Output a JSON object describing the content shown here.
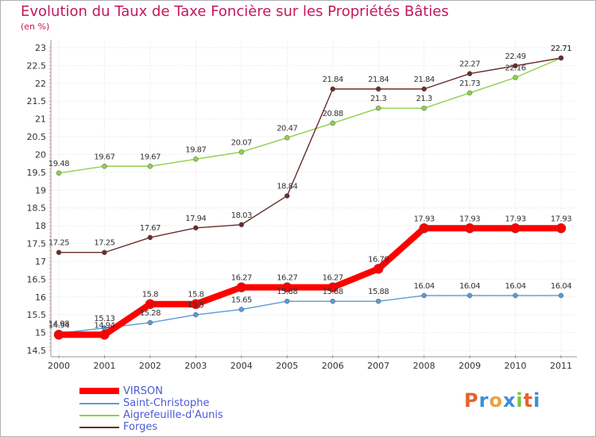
{
  "title": "Evolution du Taux de Taxe Foncière sur les Propriétés Bâties",
  "subtitle": "(en %)",
  "brand": {
    "letters": [
      "P",
      "r",
      "o",
      "x",
      "i",
      "t",
      "i"
    ],
    "colors": [
      "#e8612c",
      "#3a8fd8",
      "#e8a33c",
      "#3a8fd8",
      "#7cc242",
      "#e8612c",
      "#3a8fd8"
    ]
  },
  "chart_data": {
    "type": "line",
    "title": "Evolution du Taux de Taxe Foncière sur les Propriétés Bâties",
    "ylabel": "(en %)",
    "xlabel": "",
    "x": [
      "2000",
      "2001",
      "2002",
      "2003",
      "2004",
      "2005",
      "2006",
      "2007",
      "2008",
      "2009",
      "2010",
      "2011"
    ],
    "ylim": [
      14.5,
      23
    ],
    "yticks": [
      "14.5",
      "15",
      "15.5",
      "16",
      "16.5",
      "17",
      "17.5",
      "18",
      "18.5",
      "19",
      "19.5",
      "20",
      "20.5",
      "21",
      "21.5",
      "22",
      "22.5",
      "23"
    ],
    "series": [
      {
        "name": "Saint-Christophe",
        "color": "#5b9bd5",
        "values": [
          14.98,
          15.13,
          15.28,
          15.5,
          15.65,
          15.88,
          15.88,
          15.88,
          16.04,
          16.04,
          16.04,
          16.04
        ],
        "labels": [
          "14.98",
          "15.13",
          "15.28",
          "15.5",
          "15.65",
          "15.88",
          "15.88",
          "15.88",
          "16.04",
          "16.04",
          "16.04",
          "16.04"
        ]
      },
      {
        "name": "Aigrefeuille-d'Aunis",
        "color": "#8ed14a",
        "values": [
          19.48,
          19.67,
          19.67,
          19.87,
          20.07,
          20.47,
          20.88,
          21.3,
          21.3,
          21.73,
          22.16,
          22.71
        ],
        "labels": [
          "19.48",
          "19.67",
          "19.67",
          "19.87",
          "20.07",
          "20.47",
          "20.88",
          "21.3",
          "21.3",
          "21.73",
          "22.16",
          "22.71"
        ]
      },
      {
        "name": "Forges",
        "color": "#6b2c2c",
        "values": [
          17.25,
          17.25,
          17.67,
          17.94,
          18.03,
          18.84,
          21.84,
          21.84,
          21.84,
          22.27,
          22.49,
          22.71
        ],
        "labels": [
          "17.25",
          "17.25",
          "17.67",
          "17.94",
          "18.03",
          "18.84",
          "21.84",
          "21.84",
          "21.84",
          "22.27",
          "22.49",
          "22.71"
        ]
      },
      {
        "name": "VIRSON",
        "color": "#ff0000",
        "values": [
          14.94,
          14.94,
          15.8,
          15.8,
          16.27,
          16.27,
          16.27,
          16.79,
          17.93,
          17.93,
          17.93,
          17.93
        ],
        "labels": [
          "14.94",
          "14.94",
          "15.8",
          "15.8",
          "16.27",
          "16.27",
          "16.27",
          "16.79",
          "17.93",
          "17.93",
          "17.93",
          "17.93"
        ]
      }
    ],
    "legend": [
      {
        "name": "VIRSON",
        "color": "#ff0000"
      },
      {
        "name": "Saint-Christophe",
        "color": "#5b9bd5"
      },
      {
        "name": "Aigrefeuille-d'Aunis",
        "color": "#8ed14a"
      },
      {
        "name": "Forges",
        "color": "#6b2c2c"
      }
    ]
  }
}
